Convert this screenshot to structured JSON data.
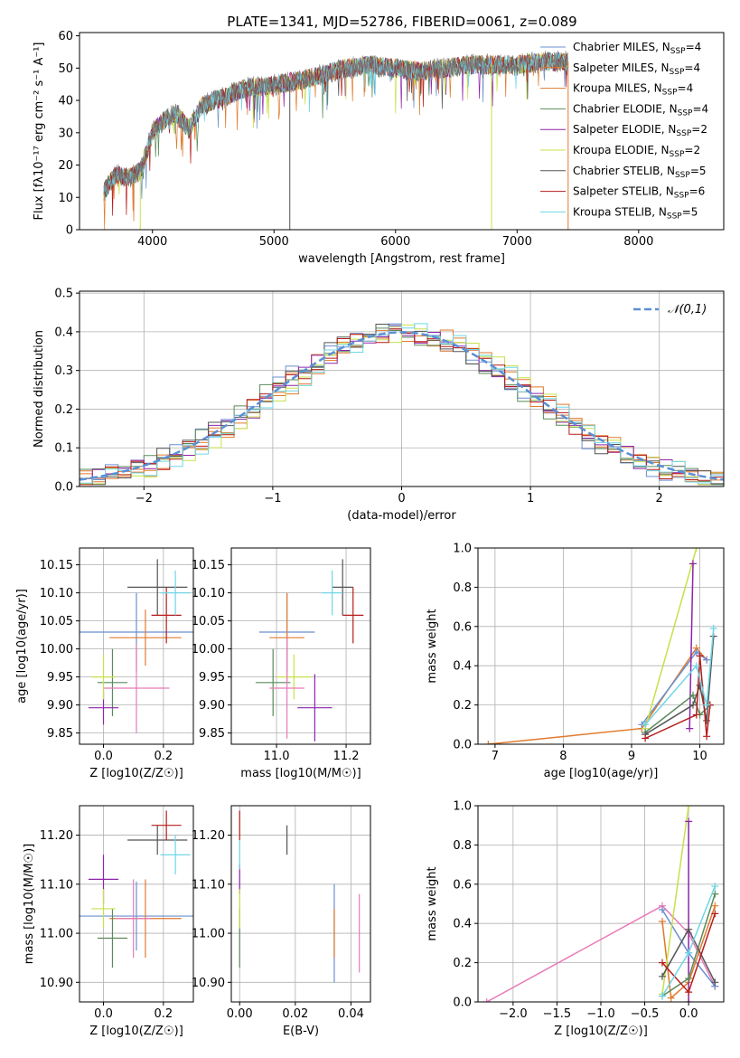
{
  "figure": {
    "title": "PLATE=1341, MJD=52786, FIBERID=0061, z=0.089"
  },
  "colors": {
    "Chabrier MILES": "#6a8fd1",
    "Salpeter MILES": "#e07a2e",
    "Kroupa MILES": "#e07a2e",
    "Chabrier ELODIE": "#5a8a5a",
    "Salpeter ELODIE": "#8e24aa",
    "Kroupa ELODIE": "#c8e04a",
    "Chabrier STELIB": "#555555",
    "Salpeter STELIB": "#b71c1c",
    "Kroupa STELIB": "#6fd6e6"
  },
  "chart_data": [
    {
      "id": "spectrum",
      "type": "line",
      "title": "PLATE=1341, MJD=52786, FIBERID=0061, z=0.089",
      "xlabel": "wavelength [Angstrom, rest frame]",
      "ylabel": "Flux [fλ10⁻¹⁷ erg cm⁻² s⁻¹ A⁻¹]",
      "xlim": [
        3400,
        8700
      ],
      "ylim": [
        0,
        61
      ],
      "xticks": [
        4000,
        5000,
        6000,
        7000,
        8000
      ],
      "yticks": [
        0,
        10,
        20,
        30,
        40,
        50,
        60
      ],
      "legend_position": "top-right",
      "legend": [
        "Chabrier MILES, N_SSP=4",
        "Salpeter MILES, N_SSP=4",
        "Kroupa MILES, N_SSP=4",
        "Chabrier ELODIE, N_SSP=4",
        "Salpeter ELODIE, N_SSP=2",
        "Kroupa ELODIE, N_SSP=2",
        "Chabrier STELIB, N_SSP=5",
        "Salpeter STELIB, N_SSP=6",
        "Kroupa STELIB, N_SSP=5"
      ],
      "continuum": {
        "x": [
          3600,
          3700,
          3800,
          3900,
          4000,
          4100,
          4200,
          4300,
          4400,
          4500,
          4600,
          4700,
          4800,
          4900,
          5000,
          5200,
          5400,
          5600,
          5800,
          6000,
          6200,
          6400,
          6600,
          6800,
          7000,
          7200,
          7400
        ],
        "y": [
          12,
          17,
          16,
          18,
          30,
          34,
          36,
          31,
          38,
          40,
          41,
          43,
          44,
          44,
          45,
          46,
          48,
          50,
          51,
          50,
          49,
          50,
          51,
          51,
          51,
          52,
          52
        ]
      }
    },
    {
      "id": "residuals",
      "type": "line",
      "xlabel": "(data-model)/error",
      "ylabel": "Normed distribution",
      "xlim": [
        -2.5,
        2.5
      ],
      "ylim": [
        0,
        0.505
      ],
      "xticks": [
        -2,
        -1,
        0,
        1,
        2
      ],
      "yticks": [
        0.0,
        0.1,
        0.2,
        0.3,
        0.4,
        0.5
      ],
      "legend": [
        "N(0,1)"
      ],
      "legend_position": "top-right",
      "gaussian": {
        "mean": 0,
        "sigma": 1
      }
    },
    {
      "id": "age_vs_Z",
      "type": "scatter",
      "xlabel": "Z [log10(Z/Z☉)]",
      "ylabel": "age  [log10(age/yr)]",
      "xlim": [
        -0.08,
        0.3
      ],
      "ylim": [
        9.83,
        10.18
      ],
      "xticks": [
        0.0,
        0.2
      ],
      "yticks": [
        9.85,
        9.9,
        9.95,
        10.0,
        10.05,
        10.1,
        10.15
      ],
      "points": [
        {
          "model": "Chabrier MILES",
          "x": 0.11,
          "y": 10.03,
          "xerr": 0.19,
          "yerr": 0.07
        },
        {
          "model": "Salpeter MILES",
          "x": 0.14,
          "y": 10.02,
          "xerr": 0.12,
          "yerr": 0.05
        },
        {
          "model": "Chabrier ELODIE",
          "x": 0.03,
          "y": 9.94,
          "xerr": 0.05,
          "yerr": 0.06
        },
        {
          "model": "Salpeter ELODIE",
          "x": 0.0,
          "y": 9.895,
          "xerr": 0.05,
          "yerr": 0.03
        },
        {
          "model": "Kroupa ELODIE",
          "x": 0.0,
          "y": 9.95,
          "xerr": 0.04,
          "yerr": 0.04
        },
        {
          "model": "Chabrier STELIB",
          "x": 0.18,
          "y": 10.11,
          "xerr": 0.1,
          "yerr": 0.05
        },
        {
          "model": "Salpeter STELIB",
          "x": 0.21,
          "y": 10.06,
          "xerr": 0.05,
          "yerr": 0.05
        },
        {
          "model": "Kroupa STELIB",
          "x": 0.24,
          "y": 10.1,
          "xerr": 0.05,
          "yerr": 0.04
        },
        {
          "model": "Kroupa MILES pink",
          "x": 0.11,
          "y": 9.93,
          "xerr": 0.11,
          "yerr": 0.08
        }
      ]
    },
    {
      "id": "age_vs_mass",
      "type": "scatter",
      "xlabel": "mass [log10(M/M☉)]",
      "xlim": [
        10.87,
        11.27
      ],
      "ylim": [
        9.83,
        10.18
      ],
      "xticks": [
        11.0,
        11.2
      ],
      "yticks": [
        9.85,
        9.9,
        9.95,
        10.0,
        10.05,
        10.1,
        10.15
      ],
      "points": [
        {
          "model": "Chabrier MILES",
          "x": 11.03,
          "y": 10.03,
          "xerr": 0.08,
          "yerr": 0.07
        },
        {
          "model": "Salpeter MILES",
          "x": 11.03,
          "y": 10.02,
          "xerr": 0.05,
          "yerr": 0.08
        },
        {
          "model": "Chabrier ELODIE",
          "x": 10.99,
          "y": 9.94,
          "xerr": 0.05,
          "yerr": 0.06
        },
        {
          "model": "Salpeter ELODIE",
          "x": 11.11,
          "y": 9.895,
          "xerr": 0.05,
          "yerr": 0.06
        },
        {
          "model": "Kroupa ELODIE",
          "x": 11.05,
          "y": 9.95,
          "xerr": 0.05,
          "yerr": 0.04
        },
        {
          "model": "Chabrier STELIB",
          "x": 11.19,
          "y": 10.11,
          "xerr": 0.03,
          "yerr": 0.05
        },
        {
          "model": "Salpeter STELIB",
          "x": 11.22,
          "y": 10.06,
          "xerr": 0.03,
          "yerr": 0.05
        },
        {
          "model": "Kroupa STELIB",
          "x": 11.16,
          "y": 10.1,
          "xerr": 0.03,
          "yerr": 0.04
        },
        {
          "model": "Kroupa MILES pink",
          "x": 11.03,
          "y": 9.93,
          "xerr": 0.05,
          "yerr": 0.09
        }
      ]
    },
    {
      "id": "weight_vs_age",
      "type": "line",
      "xlabel": "age  [log10(age/yr)]",
      "ylabel": "mass weight",
      "xlim": [
        6.75,
        10.35
      ],
      "ylim": [
        0,
        1.0
      ],
      "xticks": [
        7,
        8,
        9,
        10
      ],
      "yticks": [
        0.0,
        0.2,
        0.4,
        0.6,
        0.8,
        1.0
      ],
      "series": [
        {
          "model": "Salpeter MILES",
          "x": [
            6.9,
            9.15,
            9.95,
            10.1
          ],
          "y": [
            0.0,
            0.08,
            0.49,
            0.43
          ]
        },
        {
          "model": "Chabrier MILES",
          "x": [
            9.15,
            9.95,
            10.1
          ],
          "y": [
            0.1,
            0.47,
            0.43
          ]
        },
        {
          "model": "Kroupa ELODIE",
          "x": [
            9.2,
            9.95
          ],
          "y": [
            0.08,
            1.0
          ]
        },
        {
          "model": "Salpeter ELODIE",
          "x": [
            9.85,
            9.9
          ],
          "y": [
            0.08,
            0.92
          ]
        },
        {
          "model": "Chabrier ELODIE",
          "x": [
            9.2,
            9.9,
            10.0,
            10.15
          ],
          "y": [
            0.06,
            0.25,
            0.15,
            0.2
          ]
        },
        {
          "model": "Chabrier STELIB",
          "x": [
            9.2,
            9.9,
            10.0,
            10.1,
            10.2
          ],
          "y": [
            0.05,
            0.2,
            0.3,
            0.12,
            0.55
          ]
        },
        {
          "model": "Salpeter STELIB",
          "x": [
            9.2,
            9.95,
            10.0,
            10.1,
            10.15
          ],
          "y": [
            0.03,
            0.15,
            0.45,
            0.04,
            0.2
          ]
        },
        {
          "model": "Kroupa STELIB",
          "x": [
            9.2,
            9.95,
            10.1,
            10.2
          ],
          "y": [
            0.1,
            0.4,
            0.2,
            0.59
          ]
        }
      ]
    },
    {
      "id": "mass_vs_Z",
      "type": "scatter",
      "xlabel": "Z [log10(Z/Z☉)]",
      "ylabel": "mass [log10(M/M☉)]",
      "xlim": [
        -0.08,
        0.3
      ],
      "ylim": [
        10.86,
        11.26
      ],
      "xticks": [
        0.0,
        0.2
      ],
      "yticks": [
        10.9,
        11.0,
        11.1,
        11.2
      ],
      "points": [
        {
          "model": "Chabrier MILES",
          "x": 0.11,
          "y": 11.035,
          "xerr": 0.19,
          "yerr": 0.07
        },
        {
          "model": "Salpeter MILES",
          "x": 0.14,
          "y": 11.03,
          "xerr": 0.12,
          "yerr": 0.08
        },
        {
          "model": "Chabrier ELODIE",
          "x": 0.03,
          "y": 10.99,
          "xerr": 0.05,
          "yerr": 0.06
        },
        {
          "model": "Salpeter ELODIE",
          "x": 0.0,
          "y": 11.11,
          "xerr": 0.05,
          "yerr": 0.05
        },
        {
          "model": "Kroupa ELODIE",
          "x": 0.0,
          "y": 11.05,
          "xerr": 0.04,
          "yerr": 0.04
        },
        {
          "model": "Chabrier STELIB",
          "x": 0.18,
          "y": 11.19,
          "xerr": 0.1,
          "yerr": 0.03
        },
        {
          "model": "Salpeter STELIB",
          "x": 0.21,
          "y": 11.22,
          "xerr": 0.05,
          "yerr": 0.03
        },
        {
          "model": "Kroupa STELIB",
          "x": 0.24,
          "y": 11.16,
          "xerr": 0.05,
          "yerr": 0.04
        },
        {
          "model": "Kroupa MILES pink",
          "x": 0.1,
          "y": 11.03,
          "xerr": 0.06,
          "yerr": 0.08
        }
      ]
    },
    {
      "id": "mass_vs_ebv",
      "type": "scatter",
      "xlabel": "E(B-V)",
      "xlim": [
        -0.003,
        0.047
      ],
      "ylim": [
        10.86,
        11.26
      ],
      "xticks": [
        0.0,
        0.02,
        0.04
      ],
      "yticks": [
        10.9,
        11.0,
        11.1,
        11.2
      ],
      "points": [
        {
          "model": "Chabrier MILES",
          "x": 0.034,
          "y": 11.0,
          "xerr": 0,
          "yerr": 0.1
        },
        {
          "model": "Salpeter MILES",
          "x": 0.034,
          "y": 11.0,
          "xerr": 0,
          "yerr": 0.05
        },
        {
          "model": "Chabrier ELODIE",
          "x": 0.0,
          "y": 10.99,
          "xerr": 0,
          "yerr": 0.06
        },
        {
          "model": "Salpeter ELODIE",
          "x": 0.0,
          "y": 11.11,
          "xerr": 0,
          "yerr": 0.03
        },
        {
          "model": "Kroupa ELODIE",
          "x": 0.0,
          "y": 11.05,
          "xerr": 0,
          "yerr": 0.04
        },
        {
          "model": "Chabrier STELIB",
          "x": 0.017,
          "y": 11.19,
          "xerr": 0,
          "yerr": 0.03
        },
        {
          "model": "Salpeter STELIB",
          "x": 0.0,
          "y": 11.22,
          "xerr": 0,
          "yerr": 0.03
        },
        {
          "model": "Kroupa STELIB",
          "x": 0.0,
          "y": 11.16,
          "xerr": 0,
          "yerr": 0.03
        },
        {
          "model": "Kroupa MILES pink",
          "x": 0.043,
          "y": 11.0,
          "xerr": 0,
          "yerr": 0.08
        }
      ]
    },
    {
      "id": "weight_vs_Z",
      "type": "line",
      "xlabel": "Z [log10(Z/Z☉)]",
      "ylabel": "mass weight",
      "xlim": [
        -2.4,
        0.4
      ],
      "ylim": [
        0,
        1.0
      ],
      "xticks": [
        -2.0,
        -1.5,
        -1.0,
        -0.5,
        0.0
      ],
      "yticks": [
        0.0,
        0.2,
        0.4,
        0.6,
        0.8,
        1.0
      ],
      "series": [
        {
          "model": "Kroupa MILES pink",
          "x": [
            -2.3,
            -0.3,
            0.0,
            0.3
          ],
          "y": [
            0.0,
            0.49,
            0.35,
            0.08
          ]
        },
        {
          "model": "Chabrier MILES",
          "x": [
            -0.3,
            0.0,
            0.3
          ],
          "y": [
            0.47,
            0.25,
            0.08
          ]
        },
        {
          "model": "Salpeter MILES",
          "x": [
            -0.3,
            -0.2,
            0.0,
            0.3
          ],
          "y": [
            0.41,
            0.02,
            0.1,
            0.49
          ]
        },
        {
          "model": "Kroupa ELODIE",
          "x": [
            -0.3,
            0.0
          ],
          "y": [
            0.04,
            1.0
          ]
        },
        {
          "model": "Salpeter ELODIE",
          "x": [
            0.0,
            0.0
          ],
          "y": [
            0.0,
            0.92
          ]
        },
        {
          "model": "Chabrier ELODIE",
          "x": [
            -0.3,
            0.0,
            0.3
          ],
          "y": [
            0.03,
            0.12,
            0.55
          ]
        },
        {
          "model": "Chabrier STELIB",
          "x": [
            -0.3,
            0.0,
            0.3
          ],
          "y": [
            0.13,
            0.37,
            0.1
          ]
        },
        {
          "model": "Salpeter STELIB",
          "x": [
            -0.3,
            0.0,
            0.3
          ],
          "y": [
            0.2,
            0.05,
            0.45
          ]
        },
        {
          "model": "Kroupa STELIB",
          "x": [
            -0.3,
            0.0,
            0.3
          ],
          "y": [
            0.03,
            0.25,
            0.59
          ]
        }
      ]
    }
  ]
}
